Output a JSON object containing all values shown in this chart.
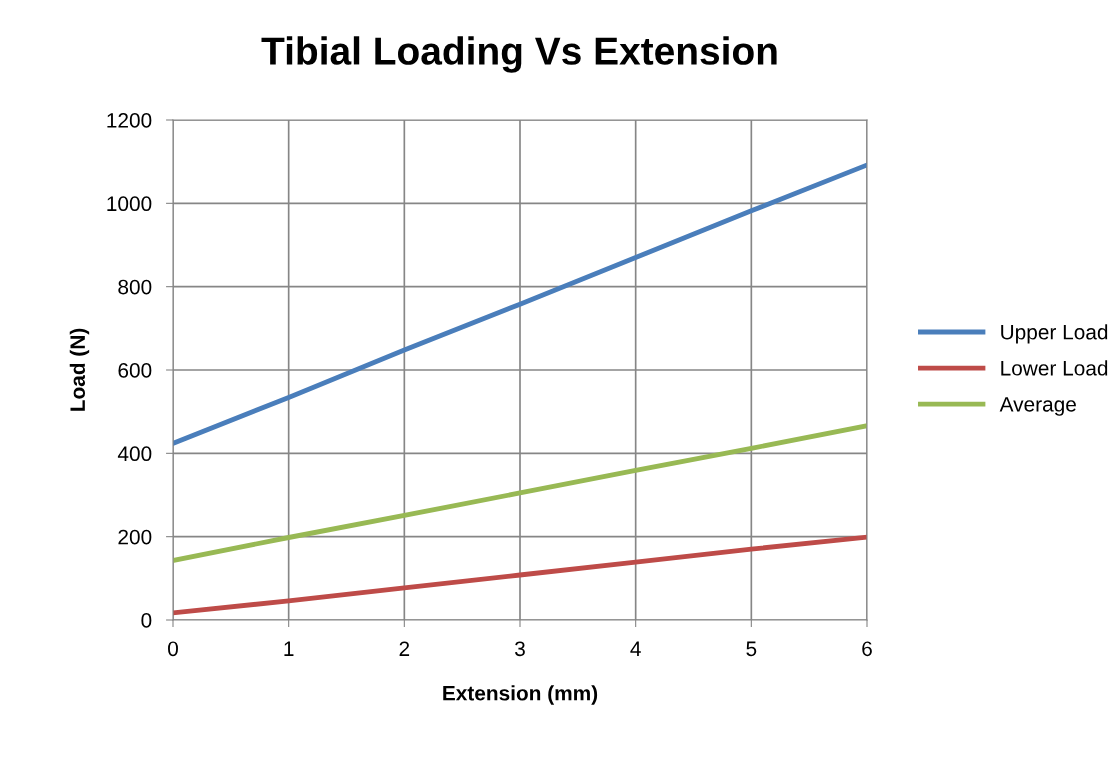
{
  "chart_data": {
    "type": "line",
    "title": "Tibial Loading Vs Extension",
    "xlabel": "Extension (mm)",
    "ylabel": "Load (N)",
    "x": [
      0,
      1,
      2,
      3,
      4,
      5,
      6
    ],
    "series": [
      {
        "name": "Upper Load",
        "color": "#4a7ebb",
        "values": [
          424,
          534,
          648,
          758,
          870,
          982,
          1092
        ]
      },
      {
        "name": "Lower Load",
        "color": "#be4b48",
        "values": [
          17,
          46,
          77,
          108,
          139,
          170,
          199
        ]
      },
      {
        "name": "Average",
        "color": "#98b954",
        "values": [
          143,
          198,
          251,
          305,
          359,
          412,
          466
        ]
      }
    ],
    "xlim": [
      0,
      6
    ],
    "xticks": [
      0,
      1,
      2,
      3,
      4,
      5,
      6
    ],
    "ylim": [
      0,
      1200
    ],
    "yticks": [
      0,
      200,
      400,
      600,
      800,
      1000,
      1200
    ],
    "grid": true,
    "legend": "right",
    "marker": "none",
    "line_style": "solid"
  }
}
